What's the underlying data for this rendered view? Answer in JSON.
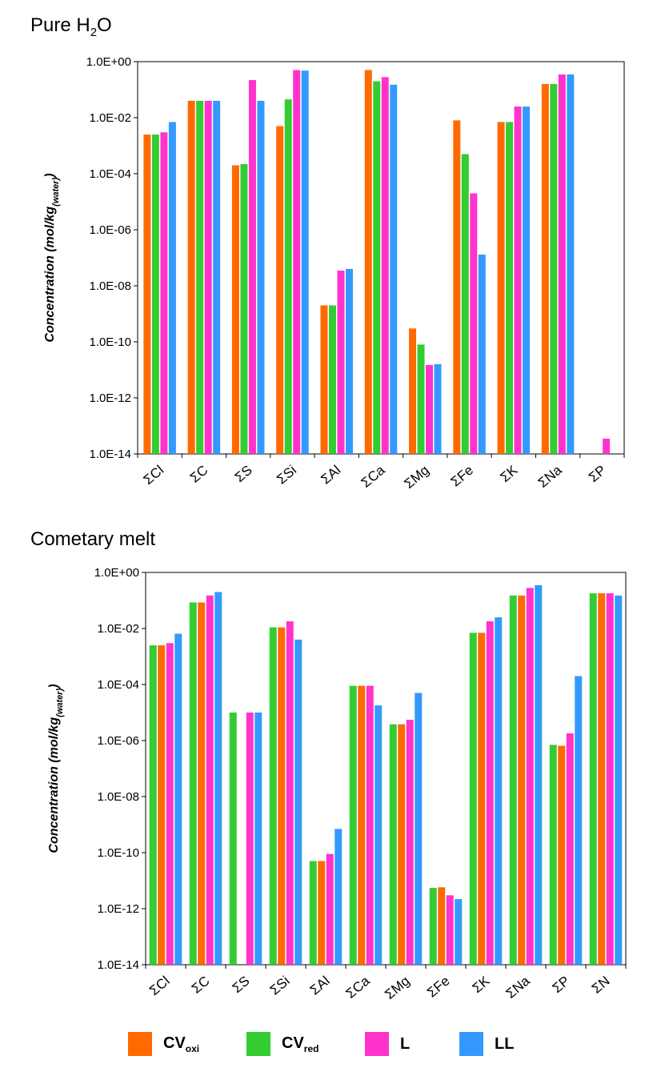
{
  "legend": [
    {
      "key": "CVoxi",
      "main": "CV",
      "sub": "oxi",
      "color": "#ff6a00"
    },
    {
      "key": "CVred",
      "main": "CV",
      "sub": "red",
      "color": "#33cc33"
    },
    {
      "key": "L",
      "main": "L",
      "sub": "",
      "color": "#ff33cc"
    },
    {
      "key": "LL",
      "main": "LL",
      "sub": "",
      "color": "#3399ff"
    }
  ],
  "chart_data": [
    {
      "type": "bar",
      "title_main": "Pure H",
      "title_sub": "2",
      "title_end": "O",
      "ylabel_main": "Concentration (mol/kg",
      "ylabel_sub": "(water)",
      "ylabel_end": ")",
      "yscale": "log",
      "ylim": [
        1e-14,
        1
      ],
      "yticks": [
        "1.0E-14",
        "1.0E-12",
        "1.0E-10",
        "1.0E-08",
        "1.0E-06",
        "1.0E-04",
        "1.0E-02",
        "1.0E+00"
      ],
      "categories": [
        "ΣCl",
        "ΣC",
        "ΣS",
        "ΣSi",
        "ΣAl",
        "ΣCa",
        "ΣMg",
        "ΣFe",
        "ΣK",
        "ΣNa",
        "ΣP"
      ],
      "series_order": [
        "CVoxi",
        "CVred",
        "L",
        "LL"
      ],
      "series": [
        {
          "key": "CVoxi",
          "values": [
            0.0025,
            0.04,
            0.0002,
            0.005,
            2e-09,
            0.5,
            3e-10,
            0.008,
            0.007,
            0.16,
            null
          ]
        },
        {
          "key": "CVred",
          "values": [
            0.0025,
            0.04,
            0.00022,
            0.045,
            2e-09,
            0.2,
            8e-11,
            0.0005,
            0.007,
            0.16,
            null
          ]
        },
        {
          "key": "L",
          "values": [
            0.003,
            0.04,
            0.22,
            0.5,
            3.5e-08,
            0.28,
            1.5e-11,
            2e-05,
            0.025,
            0.35,
            3.5e-14
          ]
        },
        {
          "key": "LL",
          "values": [
            0.007,
            0.04,
            0.04,
            0.48,
            4e-08,
            0.15,
            1.6e-11,
            1.3e-07,
            0.025,
            0.35,
            null
          ]
        }
      ]
    },
    {
      "type": "bar",
      "title_main": "Cometary melt",
      "title_sub": "",
      "title_end": "",
      "ylabel_main": "Concentration (mol/kg",
      "ylabel_sub": "(water)",
      "ylabel_end": ")",
      "yscale": "log",
      "ylim": [
        1e-14,
        1
      ],
      "yticks": [
        "1.0E-14",
        "1.0E-12",
        "1.0E-10",
        "1.0E-08",
        "1.0E-06",
        "1.0E-04",
        "1.0E-02",
        "1.0E+00"
      ],
      "categories": [
        "ΣCl",
        "ΣC",
        "ΣS",
        "ΣSi",
        "ΣAl",
        "ΣCa",
        "ΣMg",
        "ΣFe",
        "ΣK",
        "ΣNa",
        "ΣP",
        "ΣN"
      ],
      "series_order": [
        "CVred",
        "CVoxi",
        "L",
        "LL"
      ],
      "series": [
        {
          "key": "CVred",
          "values": [
            0.0025,
            0.085,
            1e-05,
            0.011,
            5e-11,
            9e-05,
            3.8e-06,
            5.5e-12,
            0.007,
            0.15,
            7e-07,
            0.18
          ]
        },
        {
          "key": "CVoxi",
          "values": [
            0.0025,
            0.085,
            null,
            0.011,
            5e-11,
            9e-05,
            3.8e-06,
            5.8e-12,
            0.007,
            0.15,
            6.5e-07,
            0.18
          ]
        },
        {
          "key": "L",
          "values": [
            0.003,
            0.15,
            1e-05,
            0.018,
            9e-11,
            9e-05,
            5.5e-06,
            3e-12,
            0.018,
            0.28,
            1.8e-06,
            0.18
          ]
        },
        {
          "key": "LL",
          "values": [
            0.0065,
            0.2,
            1e-05,
            0.004,
            7e-10,
            1.8e-05,
            5e-05,
            2.2e-12,
            0.025,
            0.35,
            0.0002,
            0.15
          ]
        }
      ]
    }
  ]
}
